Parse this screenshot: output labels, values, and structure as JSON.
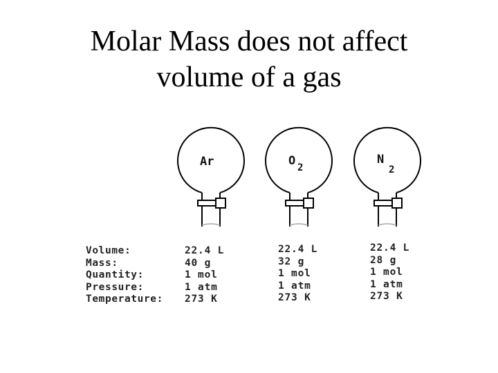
{
  "title": {
    "line1": "Molar Mass does not affect",
    "line2": "volume of a gas"
  },
  "row_labels": [
    "Volume:",
    "Mass:",
    "Quantity:",
    "Pressure:",
    "Temperature:"
  ],
  "gases": [
    {
      "symbol": "Ar",
      "subscript": "",
      "values": [
        "22.4 L",
        "40 g",
        "1 mol",
        "1 atm",
        "273 K"
      ]
    },
    {
      "symbol": "O",
      "subscript": "2",
      "values": [
        "22.4 L",
        "32 g",
        "1 mol",
        "1 atm",
        "273 K"
      ]
    },
    {
      "symbol": "N",
      "subscript": "2",
      "values": [
        "22.4 L",
        "28 g",
        "1 mol",
        "1 atm",
        "273 K"
      ]
    }
  ]
}
